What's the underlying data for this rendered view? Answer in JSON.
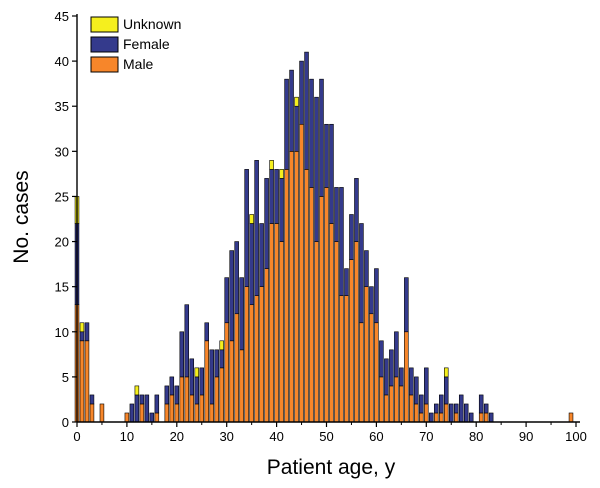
{
  "chart_data": {
    "type": "bar",
    "stacked": true,
    "xlabel": "Patient age, y",
    "ylabel": "No. cases",
    "xlim": [
      0,
      100
    ],
    "ylim": [
      0,
      45
    ],
    "xticks": [
      0,
      10,
      20,
      30,
      40,
      50,
      60,
      70,
      80,
      90,
      100
    ],
    "yticks": [
      0,
      5,
      10,
      15,
      20,
      25,
      30,
      35,
      40,
      45
    ],
    "legend_position": "top-left",
    "grid": false,
    "x": [
      0,
      1,
      2,
      3,
      4,
      5,
      6,
      7,
      8,
      9,
      10,
      11,
      12,
      13,
      14,
      15,
      16,
      17,
      18,
      19,
      20,
      21,
      22,
      23,
      24,
      25,
      26,
      27,
      28,
      29,
      30,
      31,
      32,
      33,
      34,
      35,
      36,
      37,
      38,
      39,
      40,
      41,
      42,
      43,
      44,
      45,
      46,
      47,
      48,
      49,
      50,
      51,
      52,
      53,
      54,
      55,
      56,
      57,
      58,
      59,
      60,
      61,
      62,
      63,
      64,
      65,
      66,
      67,
      68,
      69,
      70,
      71,
      72,
      73,
      74,
      75,
      76,
      77,
      78,
      79,
      80,
      81,
      82,
      83,
      84,
      85,
      86,
      87,
      88,
      89,
      90,
      91,
      92,
      93,
      94,
      95,
      96,
      97,
      98,
      99,
      100
    ],
    "series": [
      {
        "name": "Male",
        "color": "#f7862a",
        "values": [
          13,
          9,
          9,
          2,
          0,
          2,
          0,
          0,
          0,
          0,
          1,
          0,
          0,
          2,
          0,
          0,
          1,
          0,
          2,
          3,
          2,
          5,
          5,
          3,
          2,
          3,
          9,
          2,
          5,
          6,
          11,
          9,
          12,
          8,
          15,
          13,
          14,
          15,
          17,
          22,
          22,
          20,
          28,
          30,
          30,
          33,
          28,
          26,
          20,
          25,
          26,
          22,
          20,
          14,
          14,
          18,
          20,
          11,
          15,
          12,
          11,
          5,
          3,
          4,
          5,
          4,
          10,
          3,
          2,
          1,
          2,
          0,
          1,
          1,
          2,
          0,
          1,
          0,
          0,
          0,
          0,
          1,
          1,
          0,
          0,
          0,
          0,
          0,
          0,
          0,
          0,
          0,
          0,
          0,
          0,
          0,
          0,
          0,
          0,
          1,
          0
        ]
      },
      {
        "name": "Female",
        "color": "#343a8c",
        "values": [
          9,
          1,
          2,
          1,
          0,
          0,
          0,
          0,
          0,
          0,
          0,
          2,
          3,
          1,
          3,
          1,
          2,
          0,
          2,
          2,
          2,
          5,
          8,
          4,
          3,
          3,
          2,
          6,
          3,
          2,
          5,
          10,
          8,
          8,
          13,
          9,
          15,
          7,
          10,
          6,
          6,
          7,
          10,
          9,
          5,
          7,
          13,
          12,
          16,
          13,
          7,
          11,
          6,
          12,
          3,
          5,
          7,
          11,
          4,
          3,
          6,
          4,
          4,
          4,
          5,
          2,
          6,
          3,
          3,
          2,
          4,
          1,
          1,
          2,
          3,
          2,
          1,
          3,
          2,
          1,
          0,
          2,
          1,
          1,
          0,
          0,
          0,
          0,
          0,
          0,
          0,
          0,
          0,
          0,
          0,
          0,
          0,
          0,
          0,
          0,
          0
        ]
      },
      {
        "name": "Unknown",
        "color": "#f5ef1e",
        "values": [
          3,
          1,
          0,
          0,
          0,
          0,
          0,
          0,
          0,
          0,
          0,
          0,
          1,
          0,
          0,
          0,
          0,
          0,
          0,
          0,
          0,
          0,
          0,
          0,
          1,
          0,
          0,
          0,
          0,
          1,
          0,
          0,
          0,
          0,
          0,
          1,
          0,
          0,
          0,
          1,
          0,
          1,
          0,
          0,
          1,
          0,
          0,
          0,
          0,
          0,
          0,
          0,
          0,
          0,
          0,
          0,
          0,
          0,
          0,
          0,
          0,
          0,
          0,
          0,
          0,
          0,
          0,
          0,
          0,
          0,
          0,
          0,
          0,
          0,
          1,
          0,
          0,
          0,
          0,
          0,
          0,
          0,
          0,
          0,
          0,
          0,
          0,
          0,
          0,
          0,
          0,
          0,
          0,
          0,
          0,
          0,
          0,
          0,
          0,
          0,
          0
        ]
      }
    ],
    "legend_order": [
      "Unknown",
      "Female",
      "Male"
    ]
  }
}
